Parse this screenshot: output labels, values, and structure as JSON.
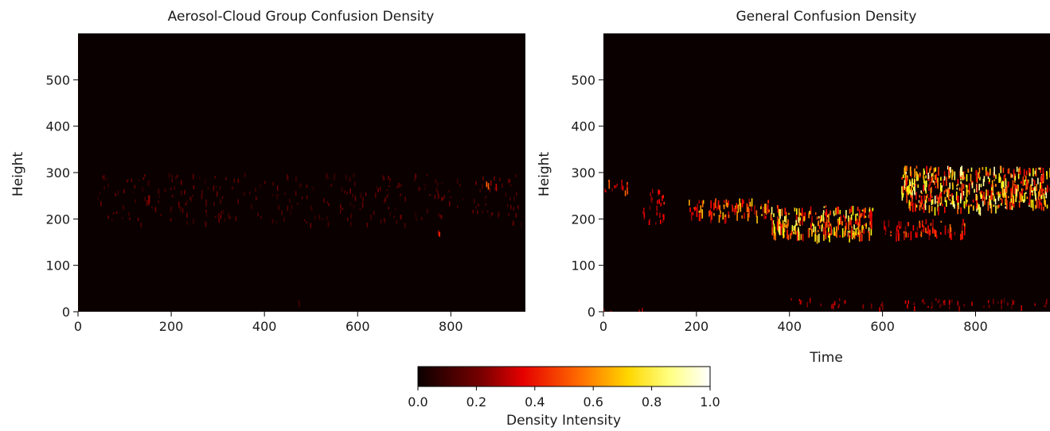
{
  "chart_data": [
    {
      "type": "heatmap",
      "title": "Aerosol-Cloud Group Confusion Density",
      "xlabel": "",
      "ylabel": "Height",
      "xlim": [
        0,
        960
      ],
      "ylim": [
        0,
        600
      ],
      "xticks": [
        0,
        200,
        400,
        600,
        800
      ],
      "yticks": [
        0,
        100,
        200,
        300,
        400,
        500
      ],
      "colormap": "hot",
      "background": "#0b0000",
      "features": [
        {
          "x": [
            40,
            960
          ],
          "y": [
            190,
            300
          ],
          "density": 0.12
        },
        {
          "x": [
            150,
            152
          ],
          "y": [
            248,
            252
          ],
          "density": 0.55
        },
        {
          "x": [
            760,
            780
          ],
          "y": [
            170,
            176
          ],
          "density": 0.35
        },
        {
          "x": [
            870,
            900
          ],
          "y": [
            275,
            285
          ],
          "density": 0.5
        },
        {
          "x": [
            460,
            475
          ],
          "y": [
            20,
            26
          ],
          "density": 0.12
        }
      ]
    },
    {
      "type": "heatmap",
      "title": "General Confusion Density",
      "xlabel": "Time",
      "ylabel": "Height",
      "xlim": [
        0,
        960
      ],
      "ylim": [
        0,
        600
      ],
      "xticks": [
        0,
        200,
        400,
        600,
        800
      ],
      "yticks": [
        0,
        100,
        200,
        300,
        400,
        500
      ],
      "colormap": "hot",
      "background": "#0b0000",
      "features": [
        {
          "x": [
            0,
            60
          ],
          "y": [
            260,
            285
          ],
          "density": 0.45
        },
        {
          "x": [
            80,
            130
          ],
          "y": [
            190,
            265
          ],
          "density": 0.35
        },
        {
          "x": [
            180,
            360
          ],
          "y": [
            205,
            245
          ],
          "density": 0.55
        },
        {
          "x": [
            360,
            580
          ],
          "y": [
            165,
            230
          ],
          "density": 0.7
        },
        {
          "x": [
            600,
            780
          ],
          "y": [
            165,
            200
          ],
          "density": 0.45
        },
        {
          "x": [
            640,
            960
          ],
          "y": [
            225,
            315
          ],
          "density": 0.75
        },
        {
          "x": [
            400,
            960
          ],
          "y": [
            10,
            30
          ],
          "density": 0.25
        },
        {
          "x": [
            0,
            120
          ],
          "y": [
            0,
            10
          ],
          "density": 0.2
        }
      ]
    }
  ],
  "colorbar": {
    "label": "Density Intensity",
    "ticks": [
      "0.0",
      "0.2",
      "0.4",
      "0.6",
      "0.8",
      "1.0"
    ],
    "stops": [
      "#0b0000",
      "#7a0000",
      "#e60000",
      "#ff6a00",
      "#ffd700",
      "#ffff80",
      "#ffffff"
    ]
  }
}
